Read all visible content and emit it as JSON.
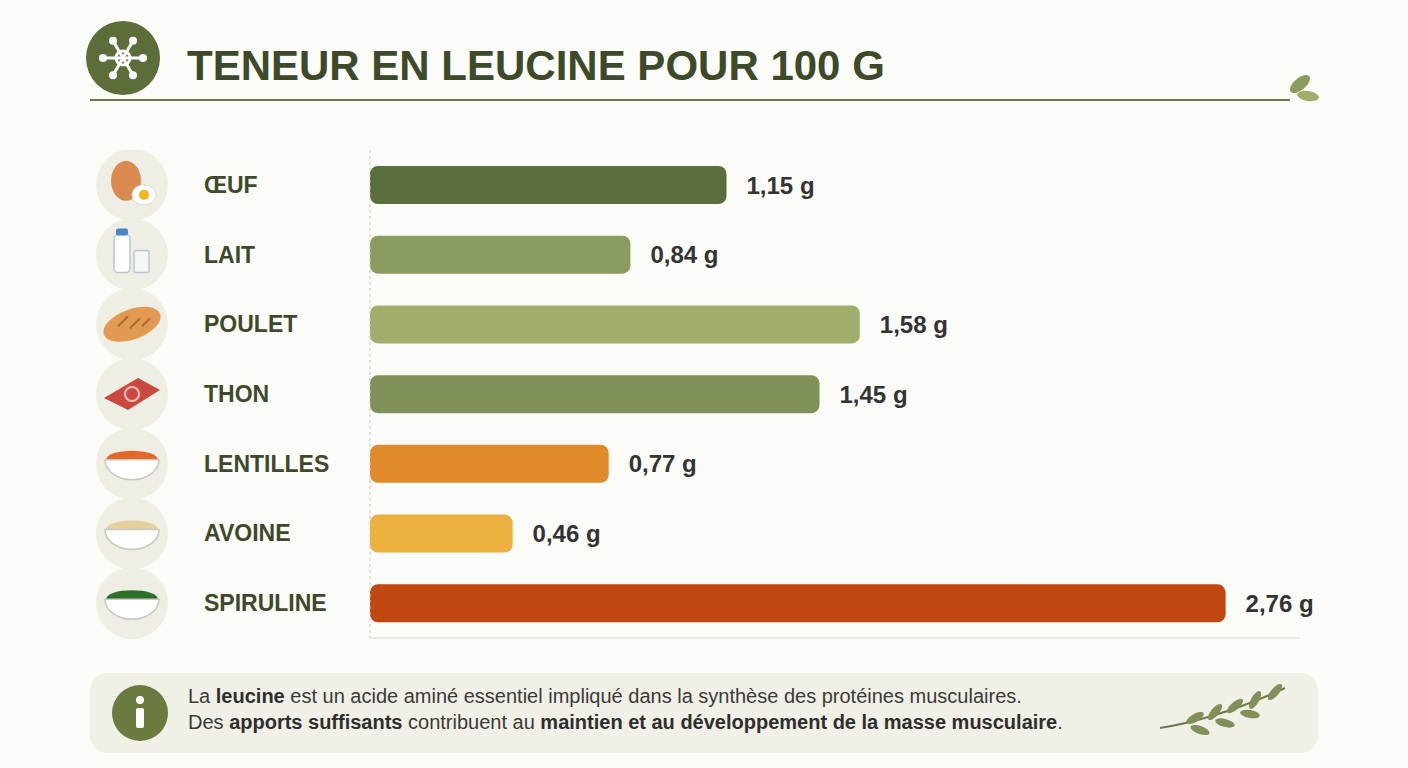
{
  "chart_data": {
    "type": "bar",
    "title": "TENEUR EN LEUCINE POUR 100 G",
    "orientation": "horizontal",
    "categories": [
      "ŒUF",
      "LAIT",
      "POULET",
      "THON",
      "LENTILLES",
      "AVOINE",
      "SPIRULINE"
    ],
    "values": [
      1.15,
      0.84,
      1.58,
      1.45,
      0.77,
      0.46,
      2.76
    ],
    "value_labels": [
      "1,15 g",
      "0,84 g",
      "1,58 g",
      "1,45 g",
      "0,77 g",
      "0,46 g",
      "2,76 g"
    ],
    "colors": [
      "#5a6e3c",
      "#8a9c5e",
      "#a0ae6c",
      "#7f9058",
      "#e08a2c",
      "#ecb03e",
      "#c0470f"
    ],
    "xlim": [
      0,
      3
    ],
    "data_labels": true,
    "tick_labels": "y",
    "annotation": [
      [
        "La ",
        "leucine",
        " est un acide aminé essentiel impliqué dans la synthèse des protéines musculaires."
      ],
      [
        "Des ",
        "apports suffisants",
        " contribuent au ",
        "maintien et au développement de la masse musculaire",
        "."
      ]
    ]
  }
}
